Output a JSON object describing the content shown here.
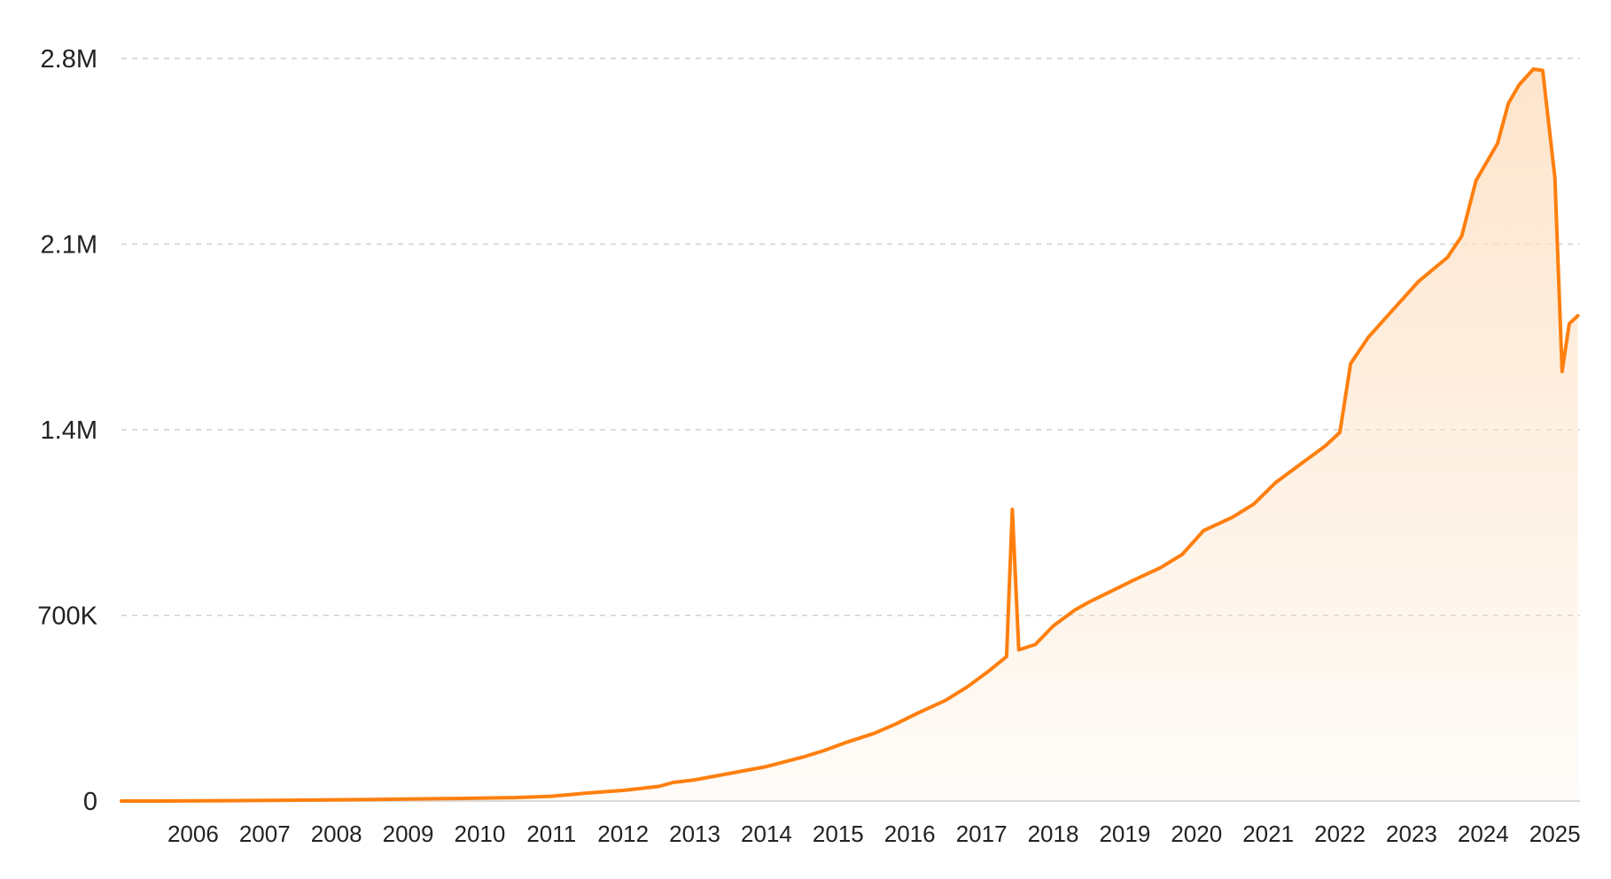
{
  "chart_data": {
    "type": "area",
    "title": "",
    "xlabel": "",
    "ylabel": "",
    "line_color": "#ff7f0e",
    "fill_color": "#fde3c9",
    "grid": "horizontal dashed",
    "legend": "none",
    "x_range": [
      2005.5,
      2025.85
    ],
    "ylim": [
      0,
      2800000
    ],
    "y_ticks": [
      {
        "value": 0,
        "label": "0"
      },
      {
        "value": 700000,
        "label": "700K"
      },
      {
        "value": 1400000,
        "label": "1.4M"
      },
      {
        "value": 2100000,
        "label": "2.1M"
      },
      {
        "value": 2800000,
        "label": "2.8M"
      }
    ],
    "x_ticks": [
      {
        "value": 2006,
        "label": "2006"
      },
      {
        "value": 2007,
        "label": "2007"
      },
      {
        "value": 2008,
        "label": "2008"
      },
      {
        "value": 2009,
        "label": "2009"
      },
      {
        "value": 2010,
        "label": "2010"
      },
      {
        "value": 2011,
        "label": "2011"
      },
      {
        "value": 2012,
        "label": "2012"
      },
      {
        "value": 2013,
        "label": "2013"
      },
      {
        "value": 2014,
        "label": "2014"
      },
      {
        "value": 2015,
        "label": "2015"
      },
      {
        "value": 2016,
        "label": "2016"
      },
      {
        "value": 2017,
        "label": "2017"
      },
      {
        "value": 2018,
        "label": "2018"
      },
      {
        "value": 2019,
        "label": "2019"
      },
      {
        "value": 2020,
        "label": "2020"
      },
      {
        "value": 2021,
        "label": "2021"
      },
      {
        "value": 2022,
        "label": "2022"
      },
      {
        "value": 2023,
        "label": "2023"
      },
      {
        "value": 2024,
        "label": "2024"
      },
      {
        "value": 2025,
        "label": "2025"
      }
    ],
    "series": [
      {
        "points": [
          [
            2005.5,
            0
          ],
          [
            2006,
            0
          ],
          [
            2007,
            1500
          ],
          [
            2008,
            3500
          ],
          [
            2009,
            6000
          ],
          [
            2010,
            9000
          ],
          [
            2011,
            13000
          ],
          [
            2011.5,
            18000
          ],
          [
            2012,
            30000
          ],
          [
            2012.5,
            40000
          ],
          [
            2013,
            55000
          ],
          [
            2013.2,
            70000
          ],
          [
            2013.5,
            80000
          ],
          [
            2014,
            105000
          ],
          [
            2014.5,
            130000
          ],
          [
            2015,
            165000
          ],
          [
            2015.3,
            190000
          ],
          [
            2015.6,
            220000
          ],
          [
            2016,
            255000
          ],
          [
            2016.3,
            290000
          ],
          [
            2016.6,
            330000
          ],
          [
            2017,
            380000
          ],
          [
            2017.3,
            430000
          ],
          [
            2017.6,
            490000
          ],
          [
            2017.85,
            545000
          ],
          [
            2017.93,
            1100000
          ],
          [
            2018.02,
            570000
          ],
          [
            2018.25,
            590000
          ],
          [
            2018.5,
            660000
          ],
          [
            2018.8,
            720000
          ],
          [
            2019,
            750000
          ],
          [
            2019.3,
            790000
          ],
          [
            2019.6,
            830000
          ],
          [
            2020,
            880000
          ],
          [
            2020.3,
            930000
          ],
          [
            2020.6,
            1020000
          ],
          [
            2021,
            1070000
          ],
          [
            2021.3,
            1120000
          ],
          [
            2021.6,
            1200000
          ],
          [
            2022,
            1280000
          ],
          [
            2022.3,
            1340000
          ],
          [
            2022.5,
            1390000
          ],
          [
            2022.65,
            1650000
          ],
          [
            2022.9,
            1750000
          ],
          [
            2023,
            1780000
          ],
          [
            2023.3,
            1870000
          ],
          [
            2023.6,
            1960000
          ],
          [
            2024,
            2050000
          ],
          [
            2024.2,
            2130000
          ],
          [
            2024.4,
            2340000
          ],
          [
            2024.7,
            2480000
          ],
          [
            2024.85,
            2630000
          ],
          [
            2025,
            2700000
          ],
          [
            2025.2,
            2760000
          ],
          [
            2025.33,
            2755000
          ],
          [
            2025.5,
            2350000
          ],
          [
            2025.6,
            1620000
          ],
          [
            2025.7,
            1800000
          ],
          [
            2025.82,
            1830000
          ]
        ]
      }
    ]
  }
}
